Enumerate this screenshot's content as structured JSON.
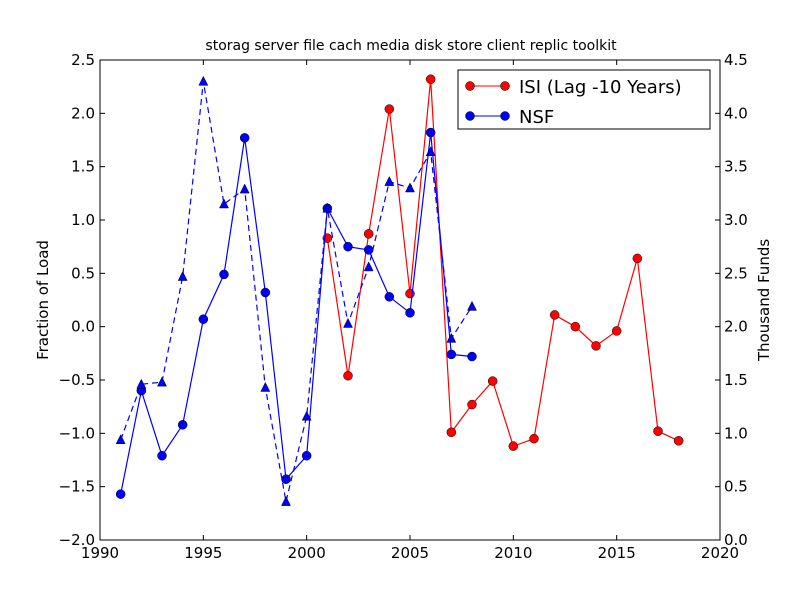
{
  "chart_data": {
    "type": "line",
    "title": "storag server file cach media disk store client replic toolkit",
    "xlabel": "",
    "ylabel": "Fraction of Load",
    "ylabel_right": "Thousand Funds",
    "xlim": [
      1990,
      2020
    ],
    "ylim": [
      -2.0,
      2.5
    ],
    "ylim_right": [
      0.0,
      4.5
    ],
    "x_ticks": [
      "1990",
      "1995",
      "2000",
      "2005",
      "2010",
      "2015",
      "2020"
    ],
    "y_ticks": [
      "−2.0",
      "−1.5",
      "−1.0",
      "−0.5",
      "0.0",
      "0.5",
      "1.0",
      "1.5",
      "2.0",
      "2.5"
    ],
    "y_ticks_right": [
      "0.0",
      "0.5",
      "1.0",
      "1.5",
      "2.0",
      "2.5",
      "3.0",
      "3.5",
      "4.0",
      "4.5"
    ],
    "grid": false,
    "legend_placement": "top-right",
    "series": [
      {
        "name": "ISI (Lag -10 Years)",
        "axis": "left",
        "color": "#ff0000",
        "marker": "circle",
        "linestyle": "solid",
        "x": [
          2001,
          2002,
          2003,
          2004,
          2005,
          2006,
          2007,
          2008,
          2009,
          2010,
          2011,
          2012,
          2013,
          2014,
          2015,
          2016,
          2017,
          2018
        ],
        "y": [
          0.83,
          -0.46,
          0.87,
          2.04,
          0.31,
          2.32,
          -0.99,
          -0.73,
          -0.51,
          -1.12,
          -1.05,
          0.11,
          0.0,
          -0.18,
          -0.04,
          0.64,
          -0.98,
          -1.07
        ]
      },
      {
        "name": "NSF",
        "axis": "left",
        "color": "#0000ff",
        "marker": "circle",
        "linestyle": "solid",
        "x": [
          1991,
          1992,
          1993,
          1994,
          1995,
          1996,
          1997,
          1998,
          1999,
          2000,
          2001,
          2002,
          2003,
          2004,
          2005,
          2006,
          2007,
          2008
        ],
        "y": [
          -1.57,
          -0.6,
          -1.21,
          -0.92,
          0.07,
          0.49,
          1.77,
          0.32,
          -1.43,
          -1.21,
          1.11,
          0.75,
          0.72,
          0.28,
          0.13,
          1.82,
          -0.26,
          -0.28
        ]
      },
      {
        "axis": "right",
        "color": "#0000ff",
        "marker": "triangle",
        "linestyle": "dashed",
        "x": [
          1991,
          1992,
          1993,
          1994,
          1995,
          1996,
          1997,
          1998,
          1999,
          2000,
          2001,
          2002,
          2003,
          2004,
          2005,
          2006,
          2007,
          2008
        ],
        "y": [
          0.94,
          1.46,
          1.48,
          2.47,
          4.3,
          3.15,
          3.29,
          1.43,
          0.36,
          1.16,
          3.11,
          2.03,
          2.56,
          3.36,
          3.3,
          3.64,
          1.89,
          2.19
        ]
      }
    ]
  }
}
